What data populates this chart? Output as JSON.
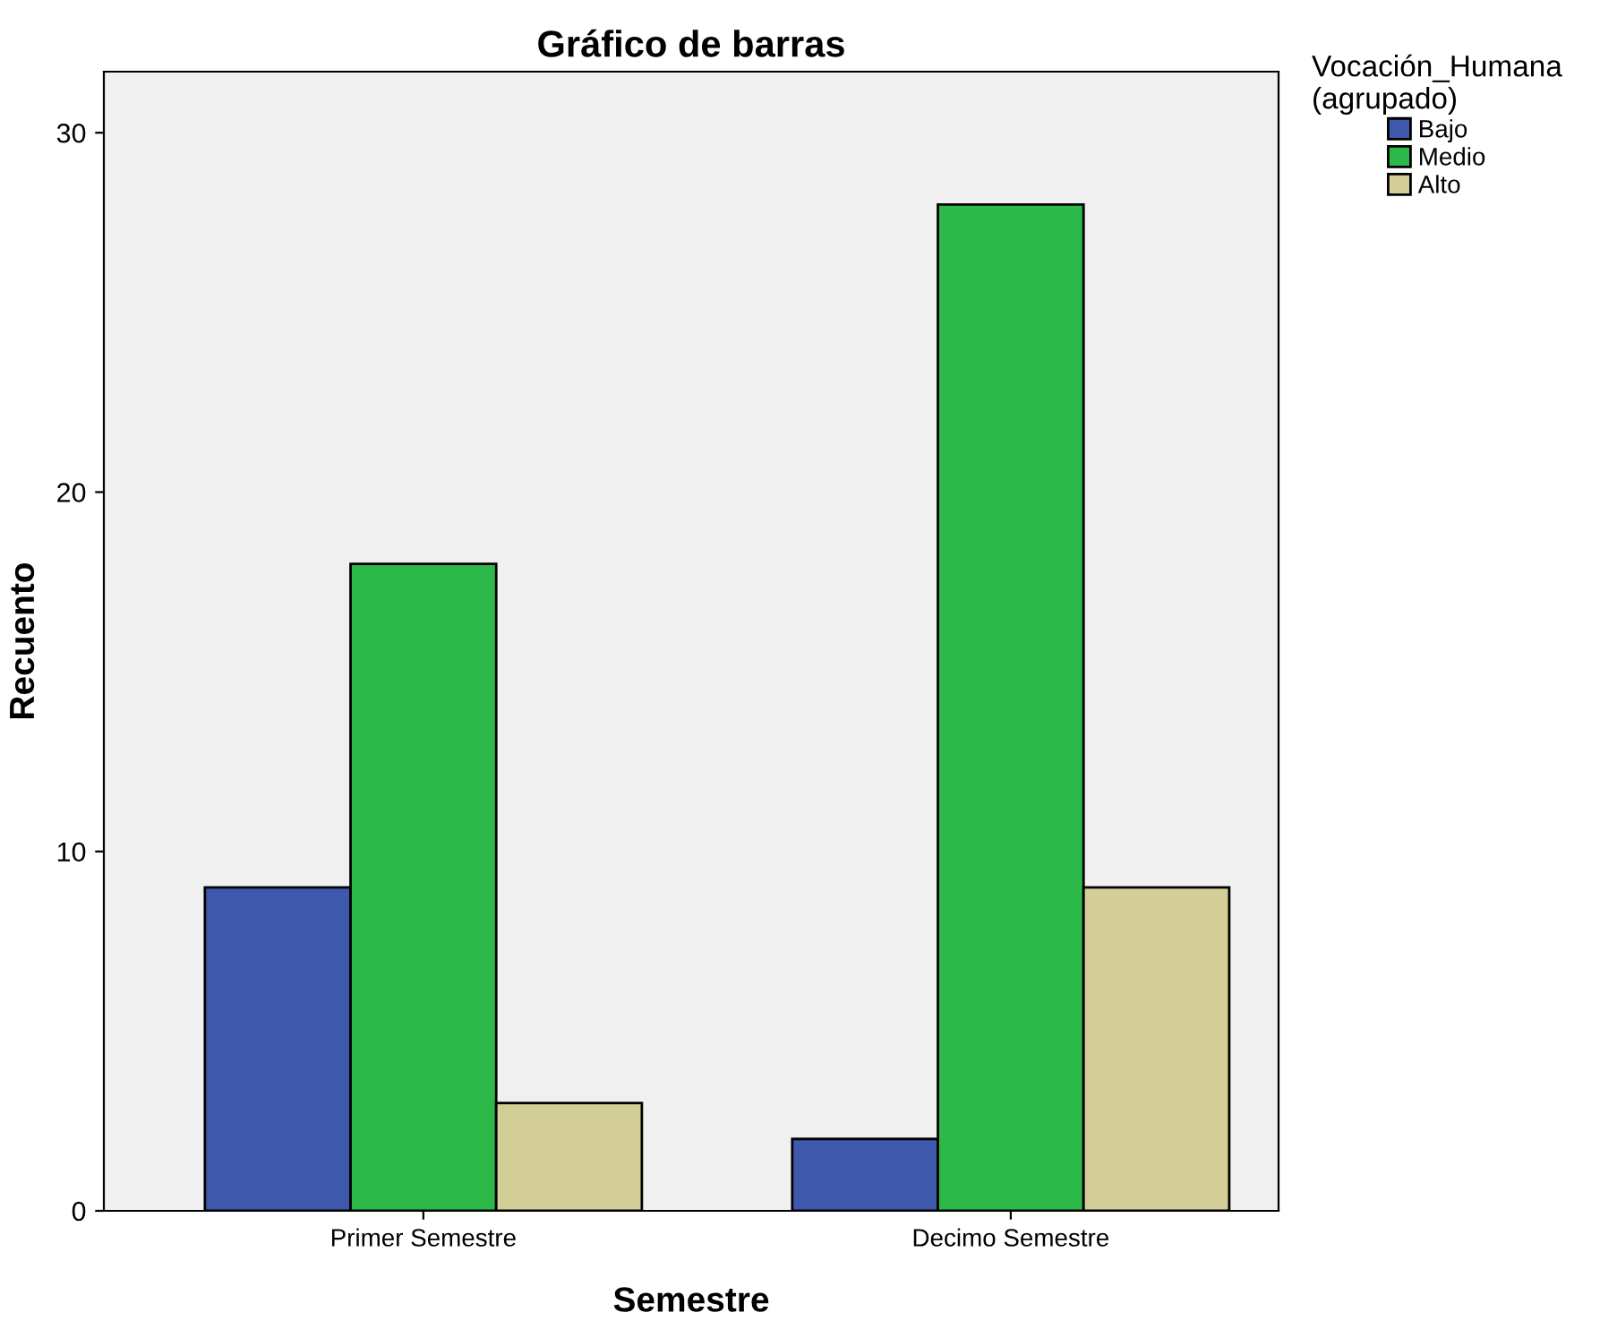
{
  "chart_data": {
    "type": "bar",
    "title": "Gráfico de barras",
    "xlabel": "Semestre",
    "ylabel": "Recuento",
    "legend_title": "Vocación_Humana\n(agrupado)",
    "categories": [
      "Primer Semestre",
      "Decimo Semestre"
    ],
    "series": [
      {
        "name": "Bajo",
        "color": "#3e58ac",
        "values": [
          9,
          2
        ]
      },
      {
        "name": "Medio",
        "color": "#2db84a",
        "values": [
          18,
          28
        ]
      },
      {
        "name": "Alto",
        "color": "#d3ce97",
        "values": [
          3,
          9
        ]
      }
    ],
    "ylim": [
      0,
      31.7
    ],
    "yticks": [
      0,
      10,
      20,
      30
    ],
    "grid": false,
    "legend": "top right"
  }
}
